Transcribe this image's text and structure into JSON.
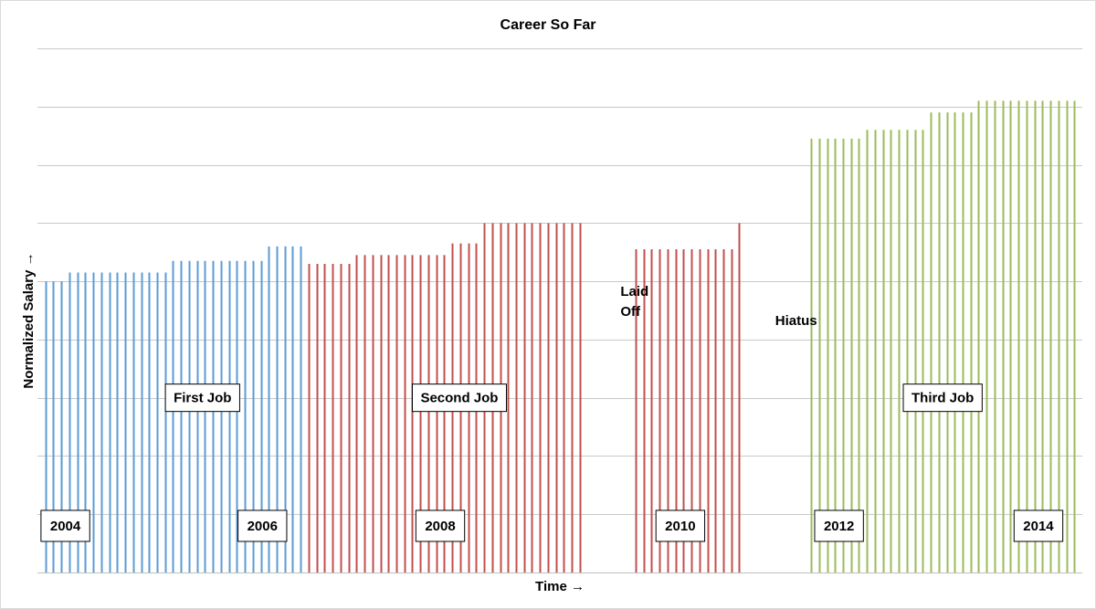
{
  "chart_data": {
    "type": "bar",
    "title": "Career So Far",
    "xlabel": "Time →",
    "ylabel": "Normalized Salary →",
    "ylim": [
      0,
      9
    ],
    "grid": true,
    "colors": {
      "first": "#5b9bd5",
      "second": "#c0504d",
      "third": "#9bbb59"
    },
    "series": [
      {
        "color_key": "first",
        "x": [
          1,
          2,
          3,
          4,
          5,
          6,
          7,
          8,
          9,
          10,
          11,
          12,
          13,
          14,
          15,
          16,
          17,
          18,
          19,
          20,
          21,
          22,
          23,
          24,
          25,
          26,
          27,
          28,
          29,
          30,
          31,
          32,
          33
        ],
        "values": [
          5.0,
          5.0,
          5.0,
          5.15,
          5.15,
          5.15,
          5.15,
          5.15,
          5.15,
          5.15,
          5.15,
          5.15,
          5.15,
          5.15,
          5.15,
          5.15,
          5.35,
          5.35,
          5.35,
          5.35,
          5.35,
          5.35,
          5.35,
          5.35,
          5.35,
          5.35,
          5.35,
          5.35,
          5.6,
          5.6,
          5.6,
          5.6,
          5.6
        ]
      },
      {
        "color_key": "second",
        "x": [
          34,
          35,
          36,
          37,
          38,
          39,
          40,
          41,
          42,
          43,
          44,
          45,
          46,
          47,
          48,
          49,
          50,
          51,
          52,
          53,
          54,
          55,
          56,
          57,
          58,
          59,
          60,
          61,
          62,
          63,
          64,
          65,
          66,
          67,
          68
        ],
        "values": [
          5.3,
          5.3,
          5.3,
          5.3,
          5.3,
          5.3,
          5.45,
          5.45,
          5.45,
          5.45,
          5.45,
          5.45,
          5.45,
          5.45,
          5.45,
          5.45,
          5.45,
          5.45,
          5.65,
          5.65,
          5.65,
          5.65,
          6.0,
          6.0,
          6.0,
          6.0,
          6.0,
          6.0,
          6.0,
          6.0,
          6.0,
          6.0,
          6.0,
          6.0,
          6.0
        ]
      },
      {
        "color_key": "second",
        "x": [
          75,
          76,
          77,
          78,
          79,
          80,
          81,
          82,
          83,
          84,
          85,
          86,
          87,
          88
        ],
        "values": [
          5.55,
          5.55,
          5.55,
          5.55,
          5.55,
          5.55,
          5.55,
          5.55,
          5.55,
          5.55,
          5.55,
          5.55,
          5.55,
          6.0
        ]
      },
      {
        "color_key": "third",
        "x": [
          97,
          98,
          99,
          100,
          101,
          102,
          103,
          104,
          105,
          106,
          107,
          108,
          109,
          110,
          111,
          112,
          113,
          114,
          115,
          116,
          117,
          118,
          119,
          120,
          121,
          122,
          123,
          124,
          125,
          126,
          127,
          128,
          129,
          130
        ],
        "values": [
          7.45,
          7.45,
          7.45,
          7.45,
          7.45,
          7.45,
          7.45,
          7.6,
          7.6,
          7.6,
          7.6,
          7.6,
          7.6,
          7.6,
          7.6,
          7.9,
          7.9,
          7.9,
          7.9,
          7.9,
          7.9,
          8.1,
          8.1,
          8.1,
          8.1,
          8.1,
          8.1,
          8.1,
          8.1,
          8.1,
          8.1,
          8.1,
          8.1,
          8.1
        ]
      }
    ],
    "x_domain": [
      0,
      131
    ],
    "year_labels": [
      {
        "text": "2004",
        "x": 3.5,
        "y": 0.8
      },
      {
        "text": "2006",
        "x": 28.2,
        "y": 0.8
      },
      {
        "text": "2008",
        "x": 50.5,
        "y": 0.8
      },
      {
        "text": "2010",
        "x": 80.6,
        "y": 0.8
      },
      {
        "text": "2012",
        "x": 100.5,
        "y": 0.8
      },
      {
        "text": "2014",
        "x": 125.5,
        "y": 0.8
      }
    ],
    "phase_labels": [
      {
        "text": "First Job",
        "x": 20.7,
        "y": 3.0
      },
      {
        "text": "Second Job",
        "x": 52.9,
        "y": 3.0
      },
      {
        "text": "Third Job",
        "x": 113.5,
        "y": 3.0
      }
    ],
    "annotations": [
      {
        "lines": [
          "Laid",
          "Off"
        ],
        "x": 73.1,
        "y": 4.75
      },
      {
        "lines": [
          "Hiatus"
        ],
        "x": 92.5,
        "y": 4.25
      }
    ]
  }
}
